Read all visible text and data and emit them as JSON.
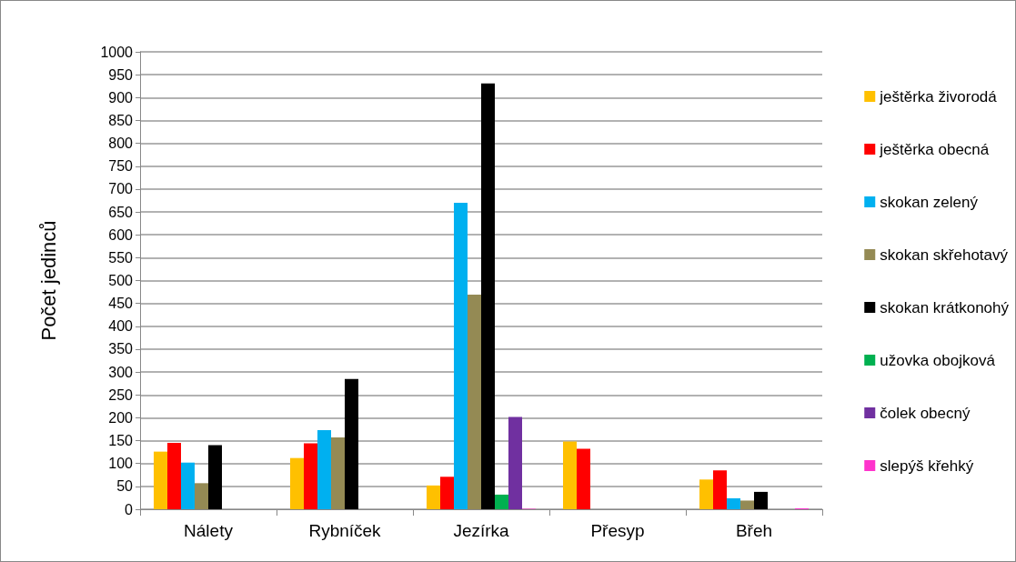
{
  "chart_data": {
    "type": "bar",
    "ylabel": "Počet jedinců",
    "categories": [
      "Nálety",
      "Rybníček",
      "Jezírka",
      "Přesyp",
      "Břeh"
    ],
    "series": [
      {
        "name": "ještěrka živorodá",
        "color": "#ffc000",
        "values": [
          126,
          112,
          52,
          148,
          65
        ]
      },
      {
        "name": "ještěrka obecná",
        "color": "#ff0000",
        "values": [
          145,
          144,
          71,
          132,
          85
        ]
      },
      {
        "name": "skokan zelený",
        "color": "#00b0f0",
        "values": [
          102,
          173,
          670,
          0,
          24
        ]
      },
      {
        "name": "skokan skřehotavý",
        "color": "#948a54",
        "values": [
          57,
          157,
          469,
          0,
          19
        ]
      },
      {
        "name": "skokan krátkonohý",
        "color": "#000000",
        "values": [
          140,
          285,
          931,
          0,
          38
        ]
      },
      {
        "name": "užovka obojková",
        "color": "#00b050",
        "values": [
          0,
          0,
          32,
          0,
          0
        ]
      },
      {
        "name": "čolek obecný",
        "color": "#7030a0",
        "values": [
          0,
          0,
          202,
          0,
          0
        ]
      },
      {
        "name": "slepýš křehký",
        "color": "#ff33cc",
        "values": [
          0,
          0,
          1,
          0,
          2
        ]
      }
    ],
    "ylim": [
      0,
      1000
    ],
    "yticks": [
      0,
      50,
      100,
      150,
      200,
      250,
      300,
      350,
      400,
      450,
      500,
      550,
      600,
      650,
      700,
      750,
      800,
      850,
      900,
      950,
      1000
    ],
    "grid": "y",
    "legend": "right"
  }
}
